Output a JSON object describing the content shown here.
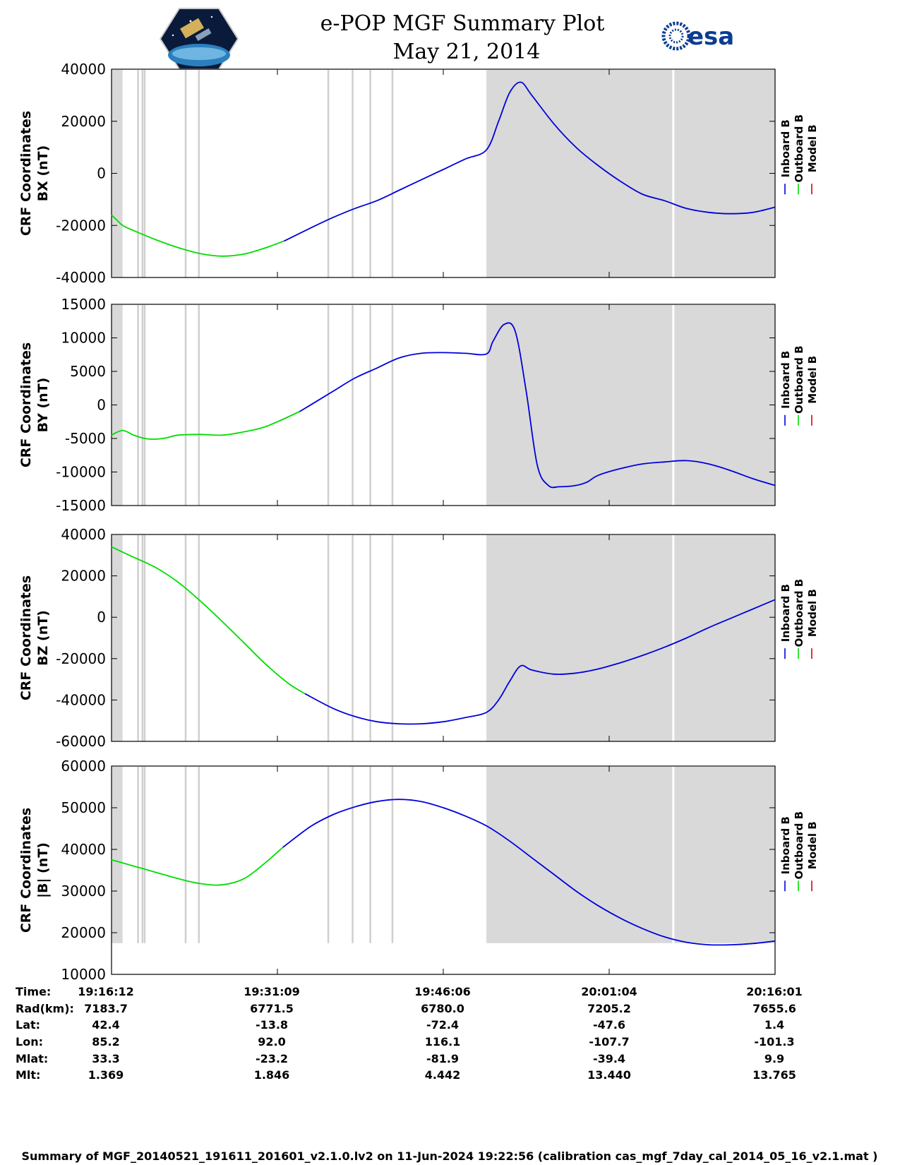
{
  "title": {
    "line1": "e-POP MGF Summary Plot",
    "line2": "May 21, 2014"
  },
  "logos": {
    "left": "cassiope-mission-patch",
    "right_text": "esa"
  },
  "colors": {
    "inboard": "#0000dd",
    "outboard": "#00dd00",
    "model": "#dd0000",
    "shade": "#d9d9d9",
    "gap": "#cfcfcf"
  },
  "legend": {
    "inboard": "Inboard B",
    "outboard": "Outboard B",
    "model": "Model B"
  },
  "info": {
    "rows": [
      {
        "label": "Time:",
        "values": [
          "19:16:12",
          "19:31:09",
          "19:46:06",
          "20:01:04",
          "20:16:01"
        ]
      },
      {
        "label": "Rad(km):",
        "values": [
          "7183.7",
          "6771.5",
          "6780.0",
          "7205.2",
          "7655.6"
        ]
      },
      {
        "label": "Lat:",
        "values": [
          "42.4",
          "-13.8",
          "-72.4",
          "-47.6",
          "1.4"
        ]
      },
      {
        "label": "Lon:",
        "values": [
          "85.2",
          "92.0",
          "116.1",
          "-107.7",
          "-101.3"
        ]
      },
      {
        "label": "Mlat:",
        "values": [
          "33.3",
          "-23.2",
          "-81.9",
          "-39.4",
          "9.9"
        ]
      },
      {
        "label": "Mlt:",
        "values": [
          "1.369",
          "1.846",
          "4.442",
          "13.440",
          "13.765"
        ]
      }
    ]
  },
  "footer": "Summary of MGF_20140521_191611_201601_v2.1.0.lv2 on 11-Jun-2024 19:22:56 (calibration cas_mgf_7day_cal_2014_05_16_v2.1.mat )",
  "chart_data": [
    {
      "type": "line",
      "name": "bx",
      "ylabel_line1": "CRF Coordinates",
      "ylabel_line2": "BX (nT)",
      "xlim": [
        0,
        60
      ],
      "ylim": [
        -40000,
        40000
      ],
      "yticks": [
        -40000,
        -20000,
        0,
        20000,
        40000
      ],
      "ytick_labels": [
        "-40000",
        "-20000",
        "0",
        "20000",
        "40000"
      ],
      "shade_range": [
        33.9,
        60
      ],
      "gap_lines": [
        0.3,
        0.6,
        2.4,
        2.8,
        3.0,
        6.7,
        7.9,
        19.6,
        21.8,
        23.4,
        25.4,
        50.8
      ],
      "switch_x": 15.6,
      "x": [
        0,
        0.5,
        1,
        2,
        4,
        6,
        8,
        10,
        12,
        14,
        15.6,
        18,
        20,
        22,
        24,
        26,
        28,
        30,
        32,
        33.9,
        35,
        36,
        37,
        38,
        40,
        42,
        44,
        46,
        48,
        50,
        52,
        54,
        56,
        58,
        60
      ],
      "y": [
        -16000,
        -18000,
        -20000,
        -22000,
        -25500,
        -28500,
        -30800,
        -31800,
        -31000,
        -28500,
        -26000,
        -21000,
        -17000,
        -13500,
        -10500,
        -6500,
        -2500,
        1500,
        5500,
        9000,
        20000,
        31000,
        35000,
        30000,
        19000,
        10000,
        3000,
        -3000,
        -8000,
        -10500,
        -13500,
        -15000,
        -15500,
        -15000,
        -13000
      ]
    },
    {
      "type": "line",
      "name": "by",
      "ylabel_line1": "CRF Coordinates",
      "ylabel_line2": "BY (nT)",
      "xlim": [
        0,
        60
      ],
      "ylim": [
        -15000,
        15000
      ],
      "yticks": [
        -15000,
        -10000,
        -5000,
        0,
        5000,
        10000,
        15000
      ],
      "ytick_labels": [
        "-15000",
        "-10000",
        "-5000",
        "0",
        "5000",
        "10000",
        "15000"
      ],
      "shade_range": [
        33.9,
        60
      ],
      "gap_lines": [
        0.3,
        0.6,
        2.4,
        2.8,
        3.0,
        6.7,
        7.9,
        19.6,
        21.8,
        23.4,
        25.4,
        50.8
      ],
      "switch_x": 17.0,
      "x": [
        0,
        1,
        2,
        3,
        4,
        5,
        6,
        8,
        10,
        12,
        14,
        17,
        20,
        22,
        24,
        26,
        28,
        30,
        32,
        33.9,
        34.5,
        35.5,
        36.5,
        37.5,
        38.5,
        39.5,
        40.5,
        42,
        43,
        44,
        46,
        48,
        50,
        52,
        54,
        56,
        58,
        60
      ],
      "y": [
        -4500,
        -3800,
        -4500,
        -5000,
        -5100,
        -4900,
        -4500,
        -4400,
        -4500,
        -4000,
        -3200,
        -1000,
        2000,
        4000,
        5500,
        7000,
        7700,
        7800,
        7700,
        7600,
        9500,
        12000,
        11000,
        2000,
        -9000,
        -12000,
        -12200,
        -12000,
        -11500,
        -10500,
        -9500,
        -8800,
        -8500,
        -8300,
        -8800,
        -9800,
        -11000,
        -12000
      ]
    },
    {
      "type": "line",
      "name": "bz",
      "ylabel_line1": "CRF Coordinates",
      "ylabel_line2": "BZ (nT)",
      "xlim": [
        0,
        60
      ],
      "ylim": [
        -60000,
        40000
      ],
      "yticks": [
        -60000,
        -40000,
        -20000,
        0,
        20000,
        40000
      ],
      "ytick_labels": [
        "-60000",
        "-40000",
        "-20000",
        "0",
        "20000",
        "40000"
      ],
      "shade_range": [
        33.9,
        60
      ],
      "gap_lines": [
        0.3,
        0.6,
        2.4,
        2.8,
        3.0,
        6.7,
        7.9,
        19.6,
        21.8,
        23.4,
        25.4,
        50.8
      ],
      "switch_x": 17.5,
      "x": [
        0,
        2,
        4,
        6,
        8,
        10,
        12,
        14,
        16,
        17.5,
        20,
        22,
        24,
        26,
        28,
        30,
        32,
        33.9,
        35,
        36,
        37,
        38,
        40,
        42,
        44,
        46,
        48,
        50,
        52,
        54,
        56,
        58,
        60
      ],
      "y": [
        34000,
        29000,
        24000,
        17000,
        8000,
        -2000,
        -12500,
        -23000,
        -32000,
        -37000,
        -44000,
        -48000,
        -50500,
        -51500,
        -51500,
        -50500,
        -48500,
        -46000,
        -40000,
        -31000,
        -23500,
        -25500,
        -27500,
        -27000,
        -25000,
        -22000,
        -18500,
        -14500,
        -10000,
        -5000,
        -500,
        4000,
        8500
      ]
    },
    {
      "type": "line",
      "name": "btotal",
      "ylabel_line1": "CRF Coordinates",
      "ylabel_line2": "|B| (nT)",
      "xlim": [
        0,
        60
      ],
      "ylim": [
        10000,
        60000
      ],
      "yticks": [
        10000,
        20000,
        30000,
        40000,
        50000,
        60000
      ],
      "ytick_labels": [
        "10000",
        "20000",
        "30000",
        "40000",
        "50000",
        "60000"
      ],
      "band_bottom_value": 17500,
      "shade_range": [
        33.9,
        60
      ],
      "gap_lines": [
        0.3,
        0.6,
        2.4,
        2.8,
        3.0,
        6.7,
        7.9,
        19.6,
        21.8,
        23.4,
        25.4,
        50.8
      ],
      "switch_x": 15.5,
      "x": [
        0,
        2,
        4,
        6,
        8,
        10,
        12,
        14,
        15.5,
        18,
        20,
        22,
        24,
        26,
        28,
        30,
        32,
        34,
        36,
        38,
        40,
        42,
        44,
        46,
        48,
        50,
        52,
        54,
        56,
        58,
        60
      ],
      "y": [
        37500,
        36000,
        34500,
        33000,
        31800,
        31500,
        33000,
        37000,
        40500,
        45500,
        48300,
        50200,
        51500,
        52000,
        51500,
        50000,
        48000,
        45500,
        42000,
        38000,
        34000,
        30000,
        26500,
        23500,
        21000,
        19000,
        17700,
        17100,
        17100,
        17400,
        18000
      ]
    }
  ]
}
